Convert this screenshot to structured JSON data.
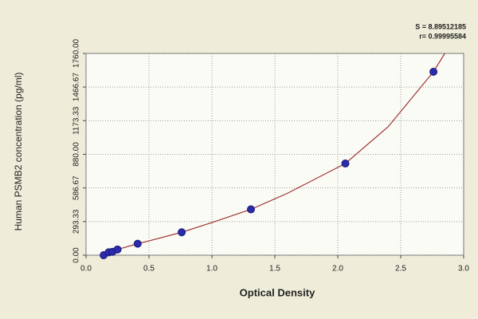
{
  "chart_data": {
    "type": "scatter",
    "x_label": "Optical Density",
    "y_label": "Human  PSMB2 concentration (pg/ml)",
    "annotations": [
      "S = 8.89512185",
      "r= 0.99995584"
    ],
    "xlim": [
      0,
      3.0
    ],
    "xticks": [
      {
        "value": 0,
        "label": "0.0"
      },
      0.5,
      {
        "value": 1,
        "label": "1.0"
      },
      1.5,
      {
        "value": 2,
        "label": "2.0"
      },
      2.5,
      {
        "value": 3,
        "label": "3.0"
      }
    ],
    "ylim": [
      0,
      1760
    ],
    "yticks": [
      {
        "value": 0,
        "label": "0.00"
      },
      {
        "value": 293.33,
        "label": "293.33"
      },
      {
        "value": 586.67,
        "label": "586.67"
      },
      {
        "value": 880,
        "label": "880.00"
      },
      {
        "value": 1173.33,
        "label": "1173.33"
      },
      {
        "value": 1466.67,
        "label": "1466.67"
      },
      {
        "value": 1760,
        "label": "1760.00"
      }
    ],
    "grid": true,
    "series": [
      {
        "color": "#2b2bb0",
        "x": [
          0.14,
          0.18,
          0.21,
          0.25,
          0.41,
          0.76,
          1.31,
          2.06,
          2.76
        ],
        "values": [
          0,
          25,
          30,
          50,
          100,
          200,
          400,
          800,
          1600
        ]
      }
    ],
    "fit": {
      "color": "#a03535",
      "x": [
        0.12,
        0.25,
        0.41,
        0.5,
        0.76,
        1.0,
        1.31,
        1.6,
        2.06,
        2.4,
        2.76,
        2.85
      ],
      "values": [
        0,
        50,
        100,
        125,
        200,
        285,
        400,
        540,
        800,
        1120,
        1600,
        1760
      ]
    }
  }
}
